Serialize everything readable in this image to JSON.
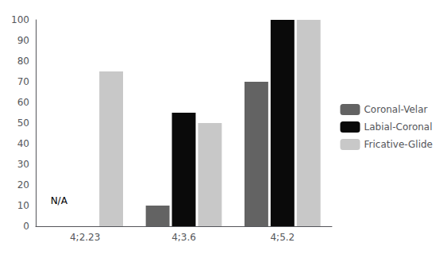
{
  "chart_data": {
    "type": "bar",
    "categories": [
      "4;2.23",
      "4;3.6",
      "4;5.2"
    ],
    "series": [
      {
        "name": "Coronal-Velar",
        "color": "#636363",
        "values": [
          null,
          10,
          70
        ]
      },
      {
        "name": "Labial-Coronal",
        "color": "#0a0a0a",
        "values": [
          null,
          55,
          100
        ]
      },
      {
        "name": "Fricative-Glide",
        "color": "#c8c8c8",
        "values": [
          75,
          50,
          100
        ]
      }
    ],
    "annotations": [
      {
        "text": "N/A",
        "x": "4;2.23",
        "y": 8
      }
    ],
    "ylim": [
      0,
      100
    ],
    "yticks": [
      0,
      10,
      20,
      30,
      40,
      50,
      60,
      70,
      80,
      90,
      100
    ],
    "grid": false,
    "legend": "right"
  }
}
